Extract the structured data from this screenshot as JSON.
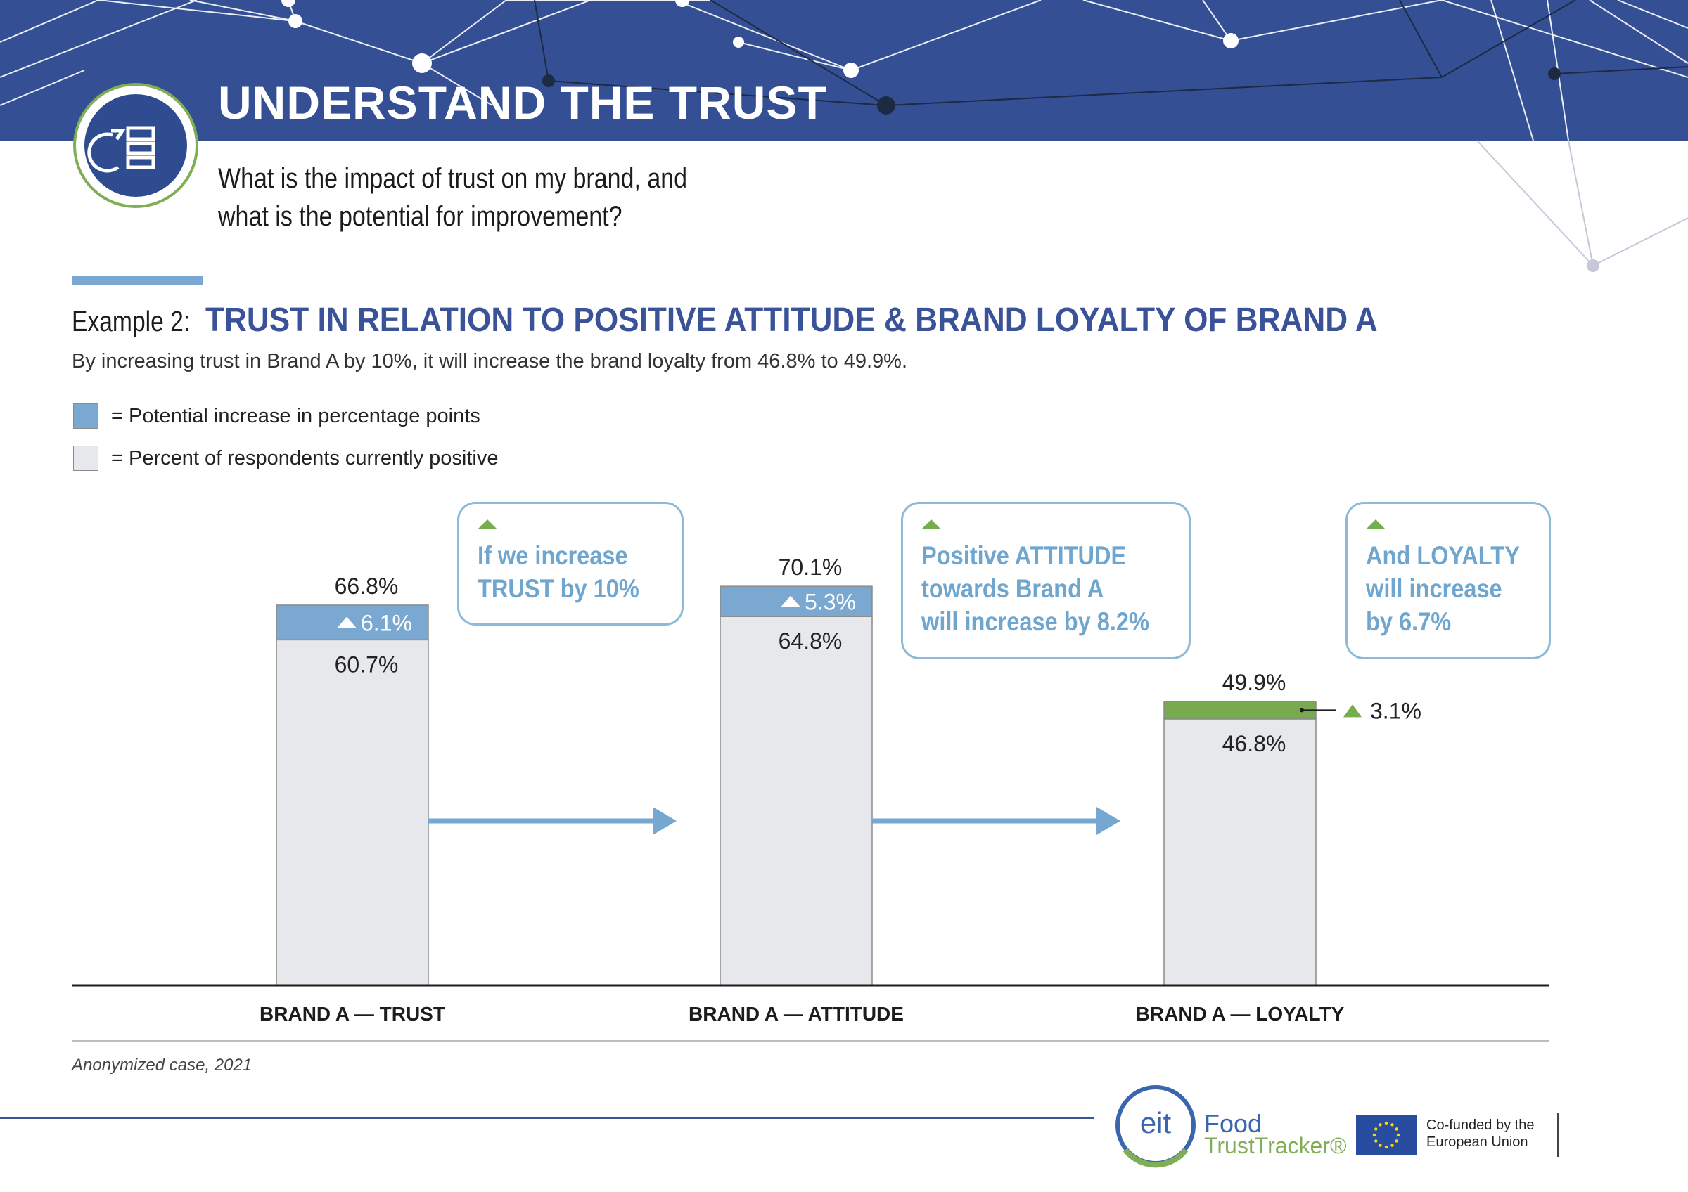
{
  "header": {
    "title": "UNDERSTAND THE TRUST",
    "question_line1": "What is the impact of trust on my brand, and",
    "question_line2": "what is the potential for improvement?"
  },
  "example": {
    "label": "Example 2:",
    "title": "TRUST IN RELATION TO POSITIVE ATTITUDE & BRAND LOYALTY OF BRAND A",
    "description": "By increasing trust in Brand A by 10%, it will increase the brand loyalty from 46.8% to 49.9%."
  },
  "legend": {
    "potential": "= Potential increase in percentage points",
    "current": "= Percent of respondents currently positive"
  },
  "callouts": {
    "trust": {
      "line1": "If we increase",
      "line2": "TRUST by 10%"
    },
    "attitude": {
      "line1": "Positive ATTITUDE",
      "line2": "towards Brand A",
      "line3": "will increase by 8.2%"
    },
    "loyalty": {
      "line1": "And LOYALTY",
      "line2": "will increase",
      "line3": "by 6.7%"
    }
  },
  "chart_data": {
    "type": "bar",
    "stacked": true,
    "categories": [
      "BRAND A — TRUST",
      "BRAND A — ATTITUDE",
      "BRAND A — LOYALTY"
    ],
    "series": [
      {
        "name": "Percent of respondents currently positive",
        "values": [
          60.7,
          64.8,
          46.8
        ]
      },
      {
        "name": "Potential increase in percentage points",
        "values": [
          6.1,
          5.3,
          3.1
        ]
      }
    ],
    "totals": [
      66.8,
      70.1,
      49.9
    ],
    "base_labels": [
      "60.7%",
      "64.8%",
      "46.8%"
    ],
    "increase_labels": [
      "6.1%",
      "5.3%",
      "3.1%"
    ],
    "total_labels": [
      "66.8%",
      "70.1%",
      "49.9%"
    ],
    "colors": {
      "base": "#e6e8eb",
      "increase": "#7aa8d1",
      "loyalty_increase": "#77ab4e",
      "arrow": "#76a7d0",
      "axis": "#1c1c1c"
    },
    "ylim": [
      0,
      100
    ]
  },
  "footer": {
    "source": "Anonymized case, 2021",
    "logo_eit": "eit",
    "logo_food": "Food",
    "logo_tracker": "TrustTracker®",
    "cofund_line1": "Co-funded by the",
    "cofund_line2": "European Union"
  }
}
